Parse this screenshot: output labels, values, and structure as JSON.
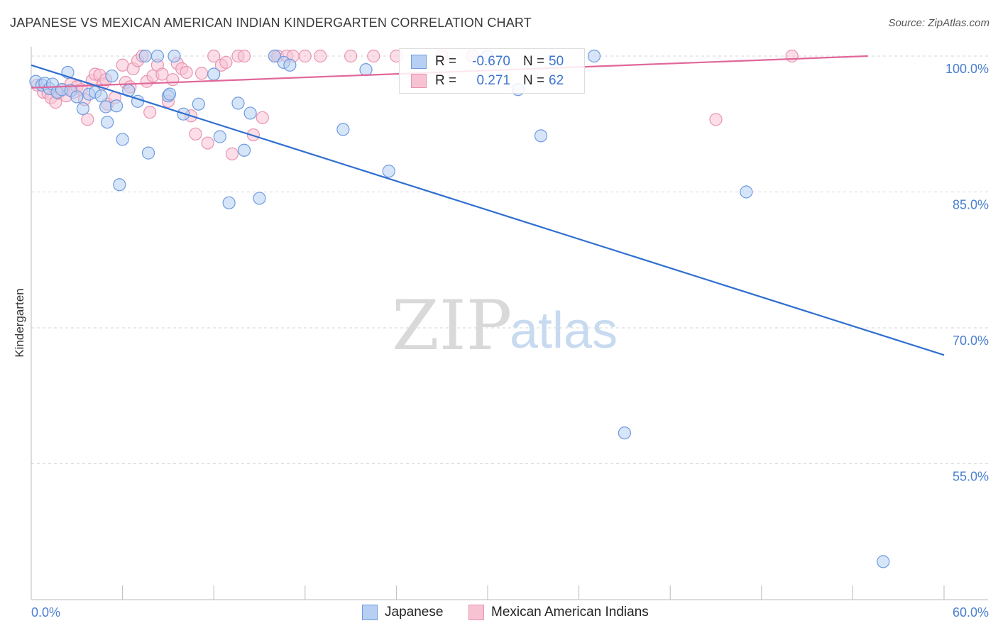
{
  "title": "JAPANESE VS MEXICAN AMERICAN INDIAN KINDERGARTEN CORRELATION CHART",
  "source": "Source: ZipAtlas.com",
  "watermark": {
    "zip": "ZIP",
    "atlas": "atlas"
  },
  "legend": {
    "rows": [
      {
        "r_label": "R =",
        "r_value": "-0.670",
        "n_label": "N =",
        "n_value": "50"
      },
      {
        "r_label": "R =",
        "r_value": "0.271",
        "n_label": "N =",
        "n_value": "62"
      }
    ]
  },
  "bottom_legend": [
    "Japanese",
    "Mexican American Indians"
  ],
  "chart_data": {
    "type": "scatter",
    "title": "JAPANESE VS MEXICAN AMERICAN INDIAN KINDERGARTEN CORRELATION CHART",
    "xlabel": "",
    "ylabel": "Kindergarten",
    "xlim": [
      0,
      60
    ],
    "ylim": [
      40,
      102
    ],
    "x_tick_labels": [
      "0.0%",
      "60.0%"
    ],
    "y_ticks": [
      55,
      70,
      85,
      100
    ],
    "y_tick_labels": [
      "55.0%",
      "70.0%",
      "85.0%",
      "100.0%"
    ],
    "grid": true,
    "legend_placement": "top-center",
    "colors": {
      "japanese_fill": "#b7cff2",
      "japanese_stroke": "#6d9be0",
      "japanese_line": "#2f6fd0",
      "mexican_fill": "#f7c3d3",
      "mexican_stroke": "#e994b0",
      "mexican_line": "#e0679a",
      "tick_text": "#4a7fd0",
      "grid": "#d5d5d5"
    },
    "series": [
      {
        "name": "Japanese",
        "r": -0.67,
        "n": 50,
        "trend": {
          "x": [
            0,
            60
          ],
          "y": [
            99.0,
            67.0
          ]
        },
        "points": [
          [
            0.3,
            97.2
          ],
          [
            0.7,
            96.8
          ],
          [
            0.9,
            97.0
          ],
          [
            1.2,
            96.4
          ],
          [
            1.4,
            96.9
          ],
          [
            1.7,
            96.0
          ],
          [
            2.0,
            96.3
          ],
          [
            2.4,
            98.2
          ],
          [
            2.6,
            96.2
          ],
          [
            3.0,
            95.5
          ],
          [
            3.4,
            94.2
          ],
          [
            3.8,
            95.8
          ],
          [
            4.2,
            96.0
          ],
          [
            4.6,
            95.6
          ],
          [
            4.9,
            94.4
          ],
          [
            5.0,
            92.7
          ],
          [
            5.3,
            97.8
          ],
          [
            5.6,
            94.5
          ],
          [
            5.8,
            85.8
          ],
          [
            6.0,
            90.8
          ],
          [
            6.4,
            96.2
          ],
          [
            7.0,
            95.0
          ],
          [
            7.5,
            100.0
          ],
          [
            7.7,
            89.3
          ],
          [
            8.3,
            100.0
          ],
          [
            9.0,
            95.6
          ],
          [
            9.1,
            95.8
          ],
          [
            9.4,
            100.0
          ],
          [
            10.0,
            93.6
          ],
          [
            11.0,
            94.7
          ],
          [
            12.0,
            98.0
          ],
          [
            12.4,
            91.1
          ],
          [
            13.0,
            83.8
          ],
          [
            13.6,
            94.8
          ],
          [
            14.0,
            89.6
          ],
          [
            14.4,
            93.7
          ],
          [
            15.0,
            84.3
          ],
          [
            16.0,
            100.0
          ],
          [
            16.6,
            99.3
          ],
          [
            17.0,
            99.0
          ],
          [
            20.5,
            91.9
          ],
          [
            22.0,
            98.5
          ],
          [
            23.5,
            87.3
          ],
          [
            30.0,
            100.0
          ],
          [
            32.0,
            96.3
          ],
          [
            33.5,
            91.2
          ],
          [
            37.0,
            100.0
          ],
          [
            39.0,
            58.4
          ],
          [
            47.0,
            85.0
          ],
          [
            56.0,
            44.2
          ]
        ]
      },
      {
        "name": "Mexican American Indians",
        "r": 0.271,
        "n": 62,
        "trend": {
          "x": [
            0,
            55
          ],
          "y": [
            96.5,
            100.0
          ]
        },
        "points": [
          [
            0.4,
            96.8
          ],
          [
            0.8,
            96.0
          ],
          [
            1.1,
            95.9
          ],
          [
            1.3,
            95.4
          ],
          [
            1.6,
            94.9
          ],
          [
            1.8,
            95.9
          ],
          [
            2.1,
            96.3
          ],
          [
            2.3,
            95.6
          ],
          [
            2.6,
            96.9
          ],
          [
            2.8,
            96.0
          ],
          [
            3.0,
            96.6
          ],
          [
            3.3,
            96.3
          ],
          [
            3.5,
            95.2
          ],
          [
            3.7,
            93.0
          ],
          [
            4.0,
            97.3
          ],
          [
            4.2,
            98.0
          ],
          [
            4.5,
            97.9
          ],
          [
            4.7,
            96.9
          ],
          [
            4.9,
            97.4
          ],
          [
            5.0,
            94.7
          ],
          [
            5.5,
            95.4
          ],
          [
            6.0,
            99.0
          ],
          [
            6.2,
            97.1
          ],
          [
            6.5,
            96.6
          ],
          [
            6.7,
            98.6
          ],
          [
            7.0,
            99.5
          ],
          [
            7.3,
            100.0
          ],
          [
            7.6,
            97.2
          ],
          [
            7.8,
            93.8
          ],
          [
            8.0,
            97.8
          ],
          [
            8.3,
            99.0
          ],
          [
            8.6,
            98.0
          ],
          [
            9.0,
            95.0
          ],
          [
            9.3,
            97.4
          ],
          [
            9.6,
            99.2
          ],
          [
            9.9,
            98.6
          ],
          [
            10.2,
            98.2
          ],
          [
            10.5,
            93.4
          ],
          [
            10.8,
            91.4
          ],
          [
            11.2,
            98.1
          ],
          [
            11.6,
            90.4
          ],
          [
            12.0,
            100.0
          ],
          [
            12.5,
            99.0
          ],
          [
            12.8,
            99.3
          ],
          [
            13.2,
            89.2
          ],
          [
            13.6,
            100.0
          ],
          [
            14.0,
            100.0
          ],
          [
            14.6,
            91.3
          ],
          [
            15.2,
            93.2
          ],
          [
            16.0,
            100.0
          ],
          [
            16.2,
            100.0
          ],
          [
            16.8,
            100.0
          ],
          [
            17.2,
            100.0
          ],
          [
            18.0,
            100.0
          ],
          [
            19.0,
            100.0
          ],
          [
            21.0,
            100.0
          ],
          [
            22.5,
            100.0
          ],
          [
            24.0,
            100.0
          ],
          [
            27.0,
            100.0
          ],
          [
            29.0,
            100.0
          ],
          [
            45.0,
            93.0
          ],
          [
            50.0,
            100.0
          ]
        ]
      }
    ]
  }
}
